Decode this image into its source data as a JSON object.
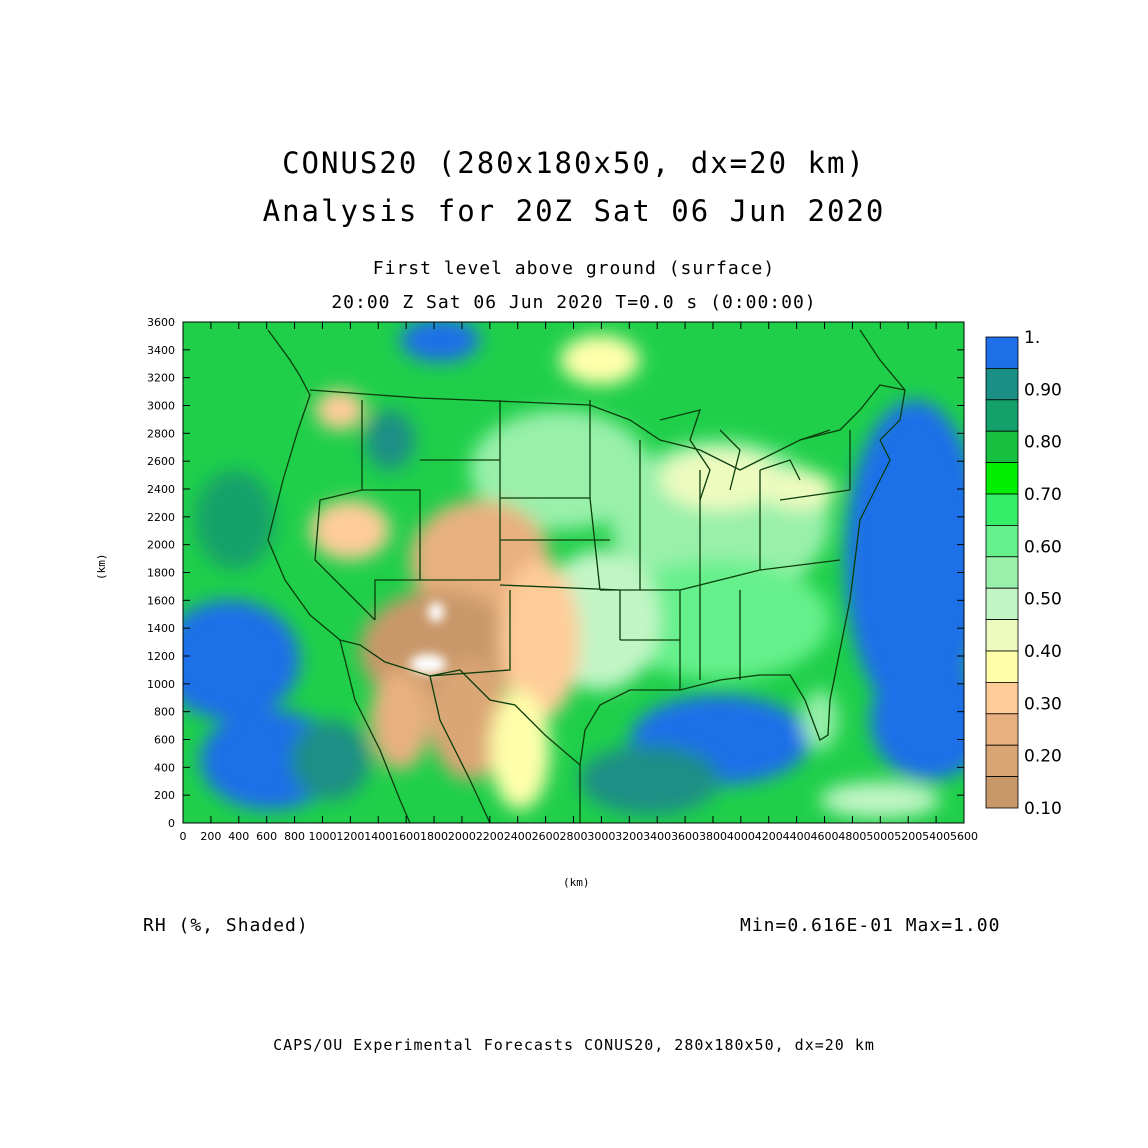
{
  "titles": {
    "title1": "CONUS20 (280x180x50, dx=20 km)",
    "title2": "Analysis for 20Z Sat 06 Jun 2020",
    "sub1": "First level above ground (surface)",
    "sub2": "20:00 Z Sat 06 Jun 2020    T=0.0 s (0:00:00)"
  },
  "axes": {
    "x_unit": "(km)",
    "y_unit": "(km)",
    "x_ticks": [
      "0",
      "200",
      "400",
      "600",
      "800",
      "1000",
      "1200",
      "1400",
      "1600",
      "1800",
      "2000",
      "2200",
      "2400",
      "2600",
      "2800",
      "3000",
      "3200",
      "3400",
      "3600",
      "3800",
      "4000",
      "4200",
      "4400",
      "4600",
      "4800",
      "5000",
      "5200",
      "5400",
      "5600"
    ],
    "y_ticks": [
      "0",
      "200",
      "400",
      "600",
      "800",
      "1000",
      "1200",
      "1400",
      "1600",
      "1800",
      "2000",
      "2200",
      "2400",
      "2600",
      "2800",
      "3000",
      "3200",
      "3400",
      "3600"
    ],
    "x_range": [
      0,
      5600
    ],
    "y_range": [
      0,
      3600
    ]
  },
  "colorbar": {
    "labels": [
      "1.",
      "0.90",
      "0.80",
      "0.70",
      "0.60",
      "0.50",
      "0.40",
      "0.30",
      "0.20",
      "0.10"
    ],
    "colors": [
      "#1f6fe8",
      "#1a8f86",
      "#14a06a",
      "#17c040",
      "#00ee00",
      "#33ee66",
      "#66f08c",
      "#99f0aa",
      "#c2f5c6",
      "#eefbbf",
      "#ffffaa",
      "#ffcc99",
      "#e8b07f",
      "#dba676",
      "#c9986a"
    ]
  },
  "field": {
    "variable": "RH (%, Shaded)",
    "min_max": "Min=0.616E-01 Max=1.00"
  },
  "footer": "CAPS/OU Experimental Forecasts  CONUS20, 280x180x50, dx=20 km"
}
